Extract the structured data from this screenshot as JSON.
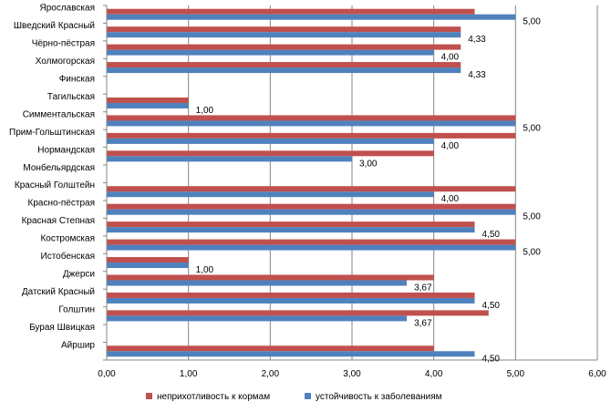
{
  "chart_data": {
    "type": "bar",
    "orientation": "horizontal",
    "categories": [
      "Ярославская",
      "Шведский Красный",
      "Чёрно-пёстрая",
      "Холмогорская",
      "Финская",
      "Тагильская",
      "Симментальская",
      "Прим-Гольштинская",
      "Нормандская",
      "Монбельярдская",
      "Красный Голштейн",
      "Красно-пёстрая",
      "Красная Степная",
      "Костромская",
      "Истобенская",
      "Джерси",
      "Датский Красный",
      "Голштин",
      "Бурая Швицкая",
      "Айршир"
    ],
    "series": [
      {
        "name": "неприхотливость к кормам",
        "color": "#C0504D",
        "values": [
          4.5,
          4.33,
          4.33,
          4.33,
          0,
          1,
          5,
          5,
          4,
          0,
          5,
          5,
          4.5,
          5,
          1,
          4,
          4.5,
          4.67,
          0,
          4
        ]
      },
      {
        "name": "устойчивость к заболеваниям",
        "color": "#4F81BD",
        "values": [
          5,
          4.33,
          4,
          4.33,
          0,
          1,
          5,
          4,
          3,
          0,
          4,
          5,
          4.5,
          5,
          1,
          3.67,
          4.5,
          3.67,
          0,
          4.5
        ]
      }
    ],
    "data_labels": [
      "5,00",
      "4,33",
      "4,00",
      "4,33",
      "",
      "1,00",
      "5,00",
      "4,00",
      "3,00",
      "",
      "4,00",
      "5,00",
      "4,50",
      "5,00",
      "1,00",
      "3,67",
      "4,50",
      "3,67",
      "",
      "4,50"
    ],
    "x_ticks": [
      "0,00",
      "1,00",
      "2,00",
      "3,00",
      "4,00",
      "5,00",
      "6,00"
    ],
    "xlim": [
      0,
      6
    ],
    "grid": "vertical major gridlines",
    "legend_position": "bottom",
    "title": "",
    "xlabel": "",
    "ylabel": ""
  }
}
